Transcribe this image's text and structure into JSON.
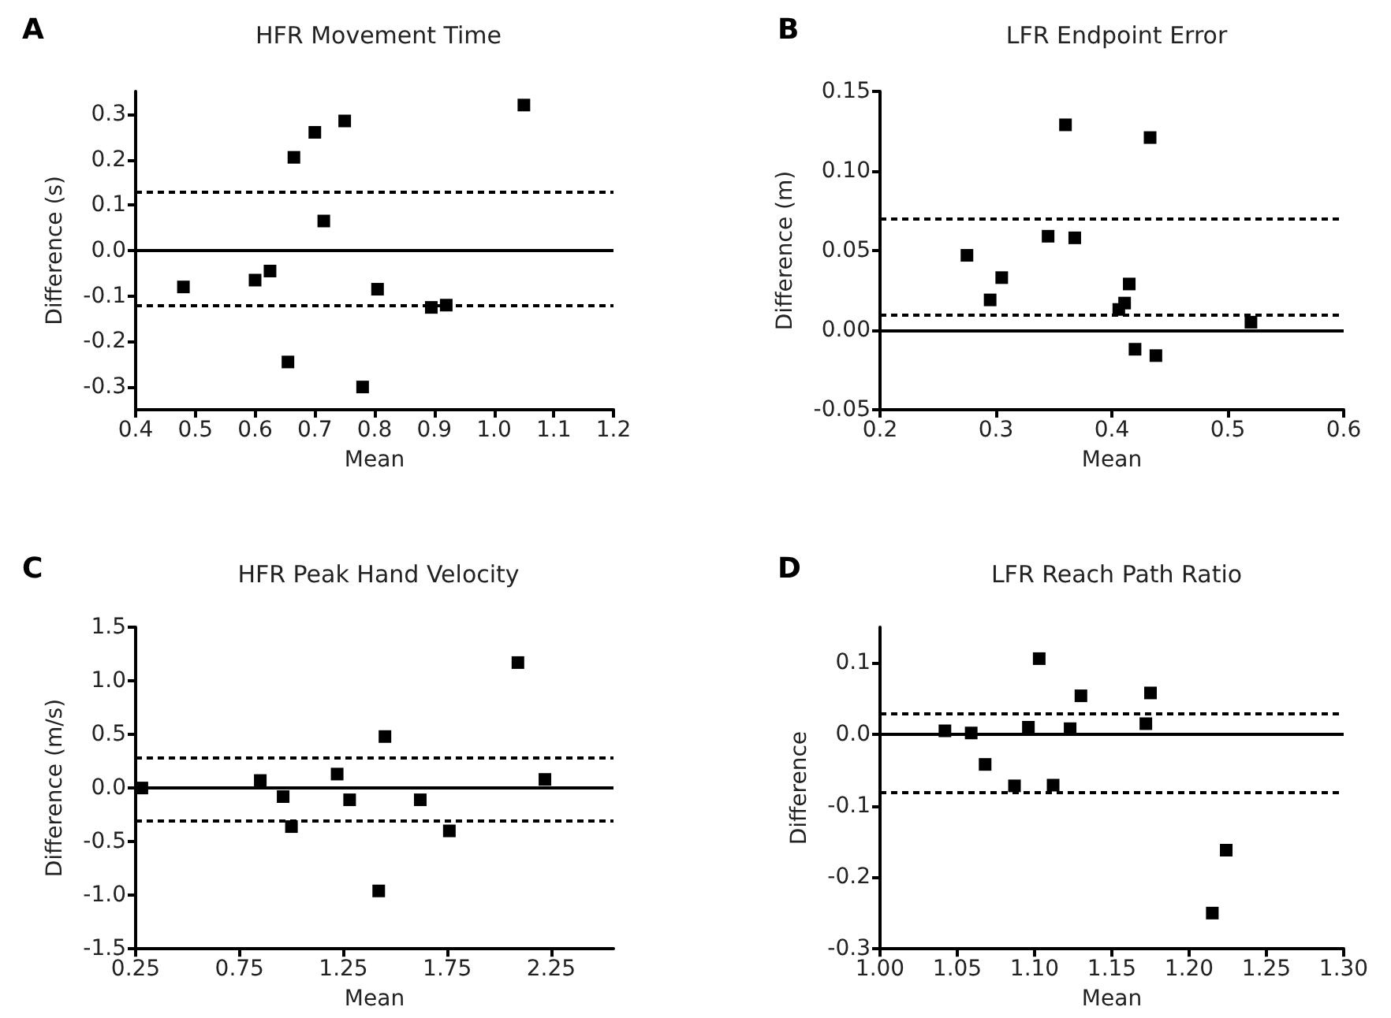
{
  "chart_data": [
    {
      "type": "scatter",
      "title": "HFR Movement Time",
      "xlabel": "Mean",
      "ylabel": "Difference (s)",
      "annotations": [
        "A"
      ],
      "marker": "square",
      "grid": false,
      "legend": false,
      "xlim": [
        0.4,
        1.2
      ],
      "xticks": [
        0.4,
        0.5,
        0.6,
        0.7,
        0.8,
        0.9,
        {
          "value": 1,
          "label": "1.0"
        },
        1.1,
        1.2
      ],
      "ylim": [
        -0.35,
        0.35
      ],
      "yticks": [
        -0.3,
        -0.2,
        -0.1,
        {
          "value": 0,
          "label": "0.0"
        },
        0.1,
        0.2,
        0.3
      ],
      "ref_lines": [
        {
          "axis": "y",
          "value": 0,
          "color": "#000000",
          "line_style": "solid"
        },
        {
          "axis": "y",
          "value": 0.13,
          "color": "#000000",
          "line_style": "dashed"
        },
        {
          "axis": "y",
          "value": -0.12,
          "color": "#000000",
          "line_style": "dashed"
        }
      ],
      "series": [
        {
          "color": "#000000",
          "x": [
            0.48,
            0.6,
            0.625,
            0.655,
            0.665,
            0.7,
            0.715,
            0.75,
            0.78,
            0.805,
            0.895,
            0.92,
            1.05
          ],
          "values": [
            -0.08,
            -0.065,
            -0.045,
            -0.245,
            0.205,
            0.26,
            0.065,
            0.285,
            -0.3,
            -0.085,
            -0.125,
            -0.12,
            0.32
          ]
        }
      ]
    },
    {
      "type": "scatter",
      "title": "LFR Endpoint Error",
      "xlabel": "Mean",
      "ylabel": "Difference (m)",
      "annotations": [
        "B"
      ],
      "marker": "square",
      "grid": false,
      "legend": false,
      "xlim": [
        0.2,
        0.6
      ],
      "xticks": [
        0.2,
        0.3,
        0.4,
        0.5,
        0.6
      ],
      "ylim": [
        -0.05,
        0.15
      ],
      "yticks": [
        -0.05,
        {
          "value": 0,
          "label": "0.00"
        },
        0.05,
        {
          "value": 0.1,
          "label": "0.10"
        },
        0.15
      ],
      "ref_lines": [
        {
          "axis": "y",
          "value": 0,
          "color": "#000000",
          "line_style": "solid"
        },
        {
          "axis": "y",
          "value": 0.07,
          "color": "#000000",
          "line_style": "dashed"
        },
        {
          "axis": "y",
          "value": 0.01,
          "color": "#000000",
          "line_style": "dashed"
        }
      ],
      "series": [
        {
          "color": "#000000",
          "x": [
            0.275,
            0.295,
            0.305,
            0.345,
            0.36,
            0.368,
            0.406,
            0.411,
            0.415,
            0.42,
            0.433,
            0.438,
            0.52
          ],
          "values": [
            0.047,
            0.019,
            0.033,
            0.059,
            0.129,
            0.058,
            0.013,
            0.017,
            0.029,
            -0.012,
            0.121,
            -0.016,
            0.005
          ]
        }
      ]
    },
    {
      "type": "scatter",
      "title": "HFR Peak Hand Velocity",
      "xlabel": "Mean",
      "ylabel": "Difference (m/s)",
      "annotations": [
        "C"
      ],
      "marker": "square",
      "grid": false,
      "legend": false,
      "xlim": [
        0.25,
        2.55
      ],
      "xticks": [
        0.25,
        0.75,
        1.25,
        1.75,
        2.25
      ],
      "ylim": [
        -1.5,
        1.5
      ],
      "yticks": [
        -1.5,
        {
          "value": -1,
          "label": "-1.0"
        },
        -0.5,
        {
          "value": 0,
          "label": "0.0"
        },
        0.5,
        {
          "value": 1,
          "label": "1.0"
        },
        1.5
      ],
      "ref_lines": [
        {
          "axis": "y",
          "value": 0,
          "color": "#000000",
          "line_style": "solid"
        },
        {
          "axis": "y",
          "value": 0.28,
          "color": "#000000",
          "line_style": "dashed"
        },
        {
          "axis": "y",
          "value": -0.31,
          "color": "#000000",
          "line_style": "dashed"
        }
      ],
      "series": [
        {
          "color": "#000000",
          "x": [
            0.28,
            0.85,
            0.96,
            1.0,
            1.22,
            1.28,
            1.42,
            1.45,
            1.62,
            1.76,
            2.09,
            2.22
          ],
          "values": [
            0.0,
            0.07,
            -0.08,
            -0.36,
            0.13,
            -0.11,
            -0.96,
            0.48,
            -0.11,
            -0.4,
            1.17,
            0.08
          ]
        }
      ]
    },
    {
      "type": "scatter",
      "title": "LFR Reach Path Ratio",
      "xlabel": "Mean",
      "ylabel": "Difference",
      "annotations": [
        "D"
      ],
      "marker": "square",
      "grid": false,
      "legend": false,
      "xlim": [
        1.0,
        1.3
      ],
      "xticks": [
        {
          "value": 1,
          "label": "1.00"
        },
        1.05,
        {
          "value": 1.1,
          "label": "1.10"
        },
        1.15,
        {
          "value": 1.2,
          "label": "1.20"
        },
        1.25,
        {
          "value": 1.3,
          "label": "1.30"
        }
      ],
      "ylim": [
        -0.3,
        0.15
      ],
      "yticks": [
        -0.3,
        -0.2,
        -0.1,
        {
          "value": 0,
          "label": "0.0"
        },
        0.1
      ],
      "ref_lines": [
        {
          "axis": "y",
          "value": 0,
          "color": "#000000",
          "line_style": "solid"
        },
        {
          "axis": "y",
          "value": 0.03,
          "color": "#000000",
          "line_style": "dashed"
        },
        {
          "axis": "y",
          "value": -0.08,
          "color": "#000000",
          "line_style": "dashed"
        }
      ],
      "series": [
        {
          "color": "#000000",
          "x": [
            1.042,
            1.059,
            1.068,
            1.087,
            1.096,
            1.103,
            1.112,
            1.123,
            1.13,
            1.172,
            1.175,
            1.215,
            1.224
          ],
          "values": [
            0.005,
            0.002,
            -0.042,
            -0.072,
            0.01,
            0.106,
            -0.071,
            0.008,
            0.054,
            0.015,
            0.058,
            -0.25,
            -0.162
          ]
        }
      ]
    }
  ]
}
